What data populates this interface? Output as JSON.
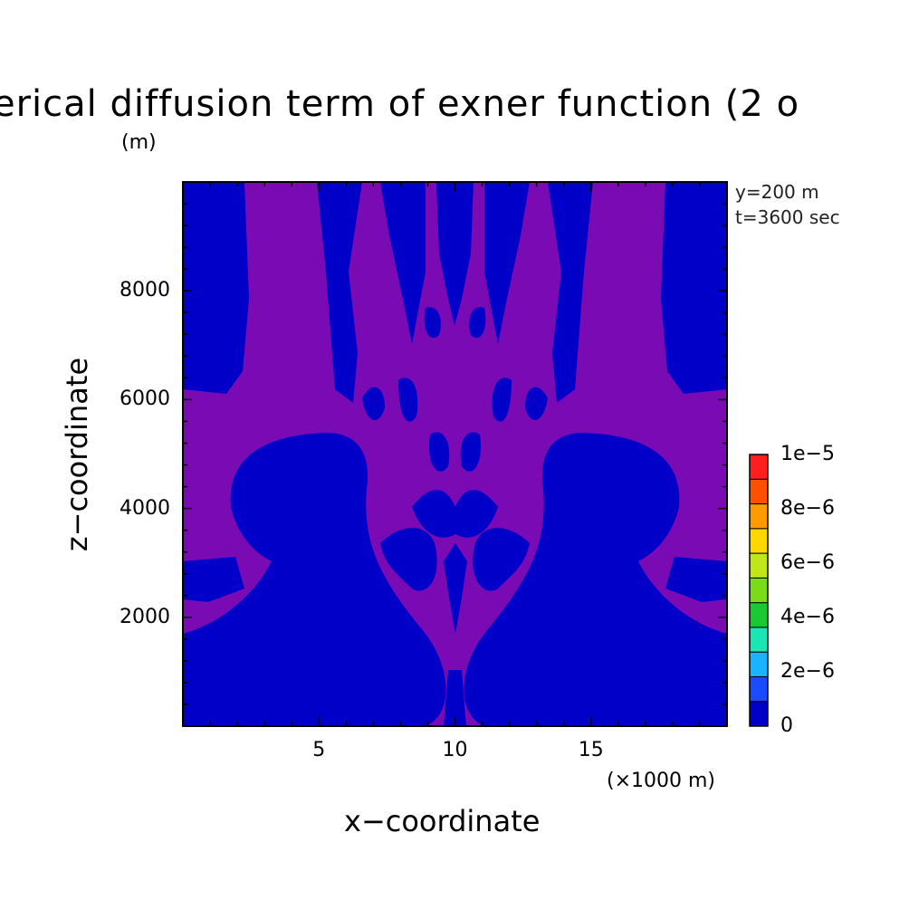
{
  "chart_data": {
    "type": "heatmap",
    "title": "erical diffusion term of exner function (2 o",
    "y_unit_label": "(m)",
    "xlabel": "x−coordinate",
    "ylabel": "z−coordinate",
    "x_unit_label": "(×1000 m)",
    "annotations": [
      "y=200 m",
      "t=3600 sec"
    ],
    "xlim": [
      0,
      20
    ],
    "ylim": [
      0,
      10000
    ],
    "x_ticks": [
      {
        "value": 5,
        "label": "5"
      },
      {
        "value": 10,
        "label": "10"
      },
      {
        "value": 15,
        "label": "15"
      }
    ],
    "y_ticks": [
      {
        "value": 2000,
        "label": "2000"
      },
      {
        "value": 4000,
        "label": "4000"
      },
      {
        "value": 6000,
        "label": "6000"
      },
      {
        "value": 8000,
        "label": "8000"
      }
    ],
    "colorbar": {
      "levels": [
        0,
        1e-06,
        2e-06,
        3e-06,
        4e-06,
        5e-06,
        6e-06,
        7e-06,
        8e-06,
        9e-06,
        1e-05
      ],
      "colors": [
        "#0000c8",
        "#1a4bff",
        "#19b4ff",
        "#19e6b4",
        "#19c832",
        "#7adc19",
        "#bfe619",
        "#ffd700",
        "#ff9b00",
        "#ff5000",
        "#ff1e1e"
      ],
      "tick_labels": [
        {
          "value": 0,
          "label": "0"
        },
        {
          "value": 2e-06,
          "label": "2e−6"
        },
        {
          "value": 4e-06,
          "label": "4e−6"
        },
        {
          "value": 6e-06,
          "label": "6e−6"
        },
        {
          "value": 8e-06,
          "label": "8e−6"
        },
        {
          "value": 1e-05,
          "label": "1e−5"
        }
      ]
    },
    "field_colors": {
      "background": "#7a0bb4",
      "low": "#0000c8"
    }
  }
}
